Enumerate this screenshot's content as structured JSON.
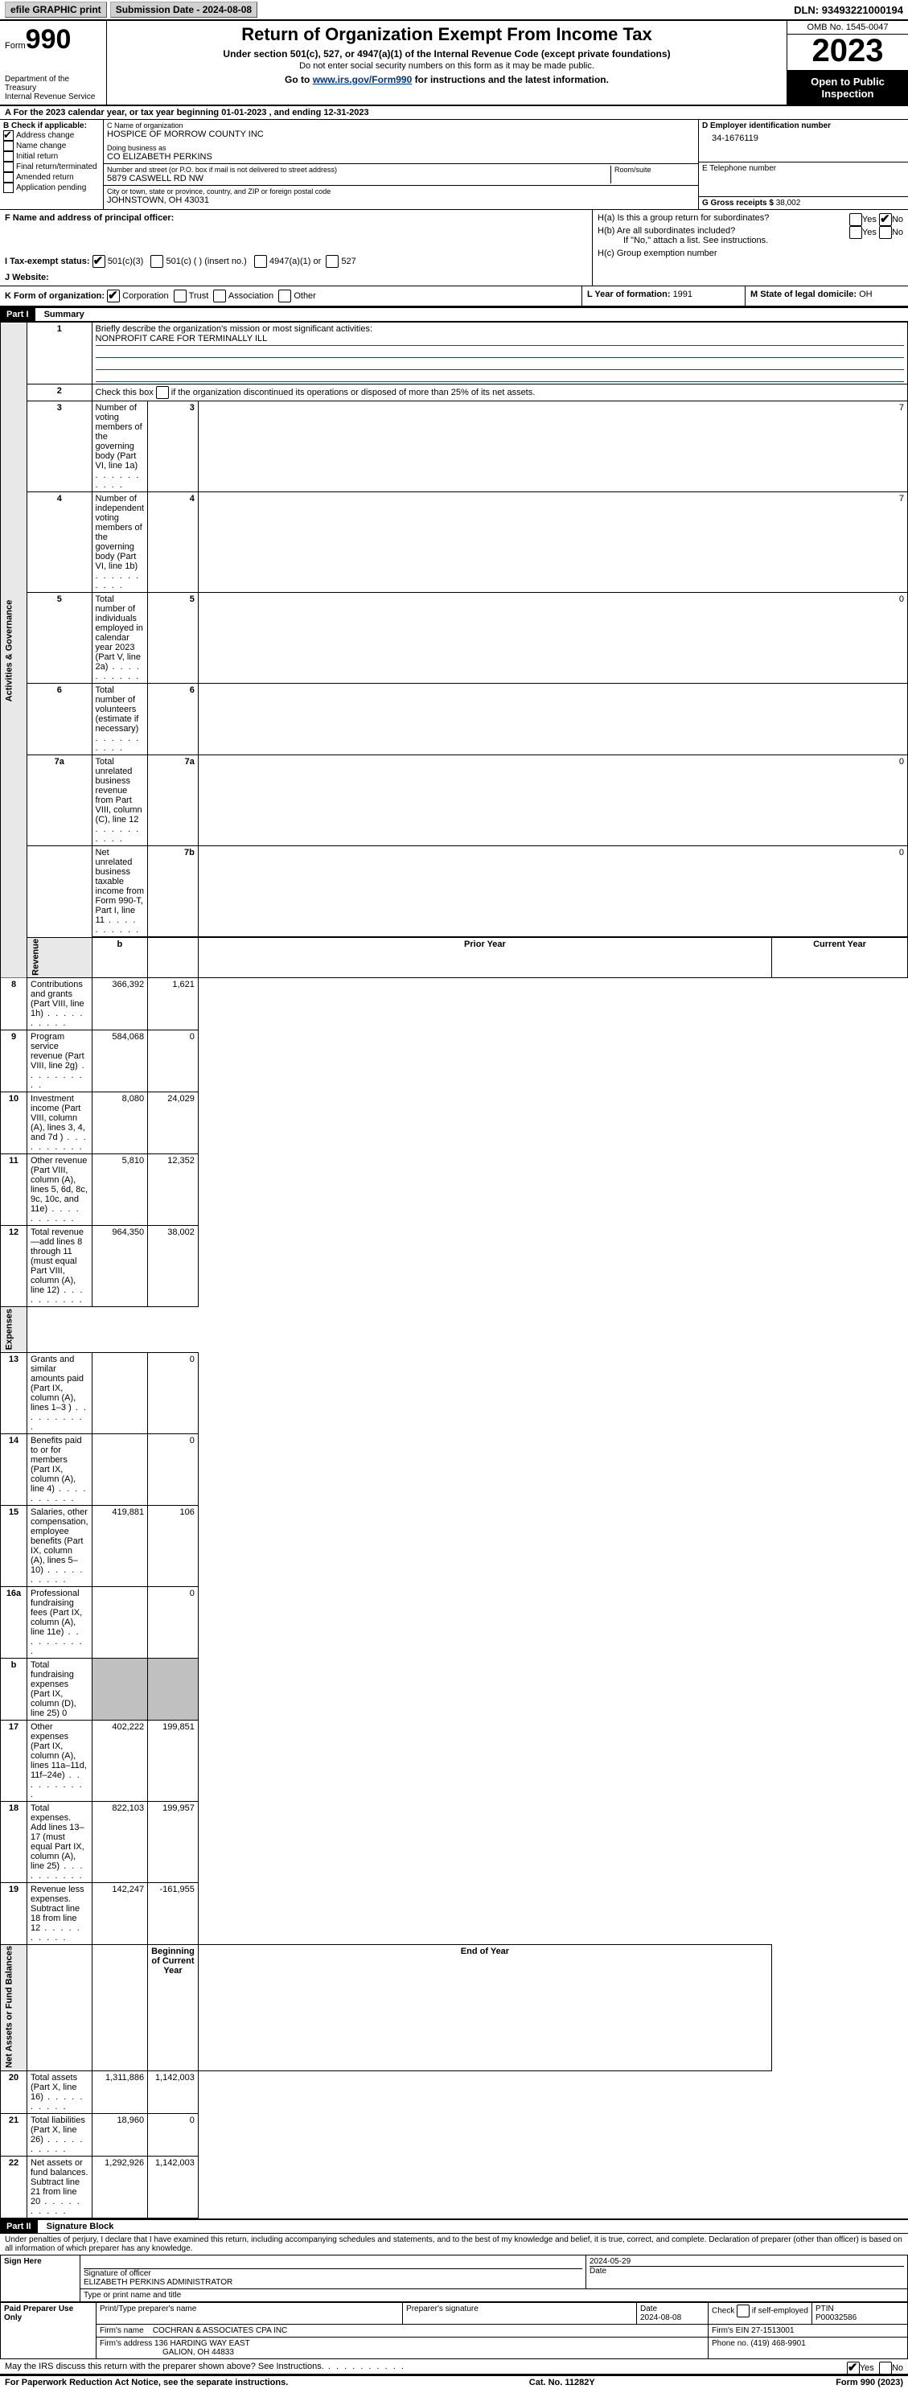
{
  "topbar": {
    "efile": "efile GRAPHIC print",
    "submission": "Submission Date - 2024-08-08",
    "dln_label": "DLN:",
    "dln": "93493221000194"
  },
  "header": {
    "form_label": "Form",
    "form_no": "990",
    "dept": "Department of the Treasury\nInternal Revenue Service",
    "title": "Return of Organization Exempt From Income Tax",
    "sub": "Under section 501(c), 527, or 4947(a)(1) of the Internal Revenue Code (except private foundations)",
    "ssn_note": "Do not enter social security numbers on this form as it may be made public.",
    "goto": "Go to ",
    "goto_link": "www.irs.gov/Form990",
    "goto_rest": " for instructions and the latest information.",
    "omb": "OMB No. 1545-0047",
    "year": "2023",
    "inspection": "Open to Public Inspection"
  },
  "section_a": "A For the 2023 calendar year, or tax year beginning 01-01-2023    , and ending 12-31-2023",
  "box_b": {
    "label": "B Check if applicable:",
    "items": [
      "Address change",
      "Name change",
      "Initial return",
      "Final return/terminated",
      "Amended return",
      "Application pending"
    ],
    "checked": [
      true,
      false,
      false,
      false,
      false,
      false
    ]
  },
  "box_c": {
    "name_label": "C Name of organization",
    "name": "HOSPICE OF MORROW COUNTY INC",
    "dba_label": "Doing business as",
    "dba": "CO ELIZABETH PERKINS",
    "addr_label": "Number and street (or P.O. box if mail is not delivered to street address)",
    "room_label": "Room/suite",
    "addr": "5879 CASWELL RD NW",
    "city_label": "City or town, state or province, country, and ZIP or foreign postal code",
    "city": "JOHNSTOWN, OH  43031"
  },
  "box_d": {
    "label": "D Employer identification number",
    "val": "34-1676119"
  },
  "box_e": {
    "label": "E Telephone number",
    "val": ""
  },
  "box_g": {
    "label": "G Gross receipts $",
    "val": "38,002"
  },
  "box_f": {
    "label": "F  Name and address of principal officer:"
  },
  "box_h": {
    "a": "H(a)  Is this a group return for subordinates?",
    "b": "H(b)  Are all subordinates included?",
    "b_note": "If \"No,\" attach a list. See instructions.",
    "c": "H(c)  Group exemption number"
  },
  "yesno": {
    "yes": "Yes",
    "no": "No"
  },
  "box_i": {
    "label": "I  Tax-exempt status:",
    "opts": [
      "501(c)(3)",
      "501(c) (  ) (insert no.)",
      "4947(a)(1) or",
      "527"
    ]
  },
  "box_j": {
    "label": "J  Website:"
  },
  "box_k": {
    "label": "K Form of organization:",
    "opts": [
      "Corporation",
      "Trust",
      "Association",
      "Other"
    ]
  },
  "box_l": {
    "label": "L Year of formation: ",
    "val": "1991"
  },
  "box_m": {
    "label": "M State of legal domicile: ",
    "val": "OH"
  },
  "part1": {
    "header": "Part I",
    "title": "Summary"
  },
  "summary": {
    "vlabels": [
      "Activities & Governance",
      "Revenue",
      "Expenses",
      "Net Assets or Fund Balances"
    ],
    "line1": "Briefly describe the organization's mission or most significant activities:",
    "mission": "NONPROFIT CARE FOR TERMINALLY ILL",
    "line2": "Check this box       if the organization discontinued its operations or disposed of more than 25% of its net assets.",
    "lines": {
      "3": {
        "t": "Number of voting members of the governing body (Part VI, line 1a)",
        "v": "7"
      },
      "4": {
        "t": "Number of independent voting members of the governing body (Part VI, line 1b)",
        "v": "7"
      },
      "5": {
        "t": "Total number of individuals employed in calendar year 2023 (Part V, line 2a)",
        "v": "0"
      },
      "6": {
        "t": "Total number of volunteers (estimate if necessary)",
        "v": ""
      },
      "7a": {
        "t": "Total unrelated business revenue from Part VIII, column (C), line 12",
        "v": "0"
      },
      "7b": {
        "t": "Net unrelated business taxable income from Form 990-T, Part I, line 11",
        "v": "0"
      }
    },
    "col_prior": "Prior Year",
    "col_current": "Current Year",
    "col_boy": "Beginning of Current Year",
    "col_eoy": "End of Year",
    "rev": [
      {
        "n": "8",
        "t": "Contributions and grants (Part VIII, line 1h)",
        "p": "366,392",
        "c": "1,621"
      },
      {
        "n": "9",
        "t": "Program service revenue (Part VIII, line 2g)",
        "p": "584,068",
        "c": "0"
      },
      {
        "n": "10",
        "t": "Investment income (Part VIII, column (A), lines 3, 4, and 7d )",
        "p": "8,080",
        "c": "24,029"
      },
      {
        "n": "11",
        "t": "Other revenue (Part VIII, column (A), lines 5, 6d, 8c, 9c, 10c, and 11e)",
        "p": "5,810",
        "c": "12,352"
      },
      {
        "n": "12",
        "t": "Total revenue—add lines 8 through 11 (must equal Part VIII, column (A), line 12)",
        "p": "964,350",
        "c": "38,002"
      }
    ],
    "exp": [
      {
        "n": "13",
        "t": "Grants and similar amounts paid (Part IX, column (A), lines 1–3 )",
        "p": "",
        "c": "0"
      },
      {
        "n": "14",
        "t": "Benefits paid to or for members (Part IX, column (A), line 4)",
        "p": "",
        "c": "0"
      },
      {
        "n": "15",
        "t": "Salaries, other compensation, employee benefits (Part IX, column (A), lines 5–10)",
        "p": "419,881",
        "c": "106"
      },
      {
        "n": "16a",
        "t": "Professional fundraising fees (Part IX, column (A), line 11e)",
        "p": "",
        "c": "0"
      },
      {
        "n": "b",
        "t": "Total fundraising expenses (Part IX, column (D), line 25) 0",
        "shaded": true
      },
      {
        "n": "17",
        "t": "Other expenses (Part IX, column (A), lines 11a–11d, 11f–24e)",
        "p": "402,222",
        "c": "199,851"
      },
      {
        "n": "18",
        "t": "Total expenses. Add lines 13–17 (must equal Part IX, column (A), line 25)",
        "p": "822,103",
        "c": "199,957"
      },
      {
        "n": "19",
        "t": "Revenue less expenses. Subtract line 18 from line 12",
        "p": "142,247",
        "c": "-161,955"
      }
    ],
    "net": [
      {
        "n": "20",
        "t": "Total assets (Part X, line 16)",
        "p": "1,311,886",
        "c": "1,142,003"
      },
      {
        "n": "21",
        "t": "Total liabilities (Part X, line 26)",
        "p": "18,960",
        "c": "0"
      },
      {
        "n": "22",
        "t": "Net assets or fund balances. Subtract line 21 from line 20",
        "p": "1,292,926",
        "c": "1,142,003"
      }
    ]
  },
  "part2": {
    "header": "Part II",
    "title": "Signature Block",
    "perjury": "Under penalties of perjury, I declare that I have examined this return, including accompanying schedules and statements, and to the best of my knowledge and belief, it is true, correct, and complete. Declaration of preparer (other than officer) is based on all information of which preparer has any knowledge."
  },
  "sign": {
    "here": "Sign Here",
    "sig_officer": "Signature of officer",
    "officer": "ELIZABETH PERKINS ADMINISTRATOR",
    "type_name": "Type or print name and title",
    "date": "2024-05-29",
    "date_label": "Date"
  },
  "paid": {
    "label": "Paid Preparer Use Only",
    "prep_name": "Print/Type preparer's name",
    "prep_sig": "Preparer's signature",
    "date_label": "Date",
    "date": "2024-08-08",
    "self": "Check        if self-employed",
    "ptin_label": "PTIN",
    "ptin": "P00032586",
    "firm_name_label": "Firm's name",
    "firm_name": "COCHRAN & ASSOCIATES CPA INC",
    "firm_ein_label": "Firm's EIN",
    "firm_ein": "27-1513001",
    "firm_addr_label": "Firm's address",
    "firm_addr1": "136 HARDING WAY EAST",
    "firm_addr2": "GALION, OH  44833",
    "phone_label": "Phone no.",
    "phone": "(419) 468-9901"
  },
  "discuss": "May the IRS discuss this return with the preparer shown above? See Instructions.",
  "footer": {
    "pra": "For Paperwork Reduction Act Notice, see the separate instructions.",
    "cat": "Cat. No. 11282Y",
    "form": "Form 990 (2023)"
  }
}
